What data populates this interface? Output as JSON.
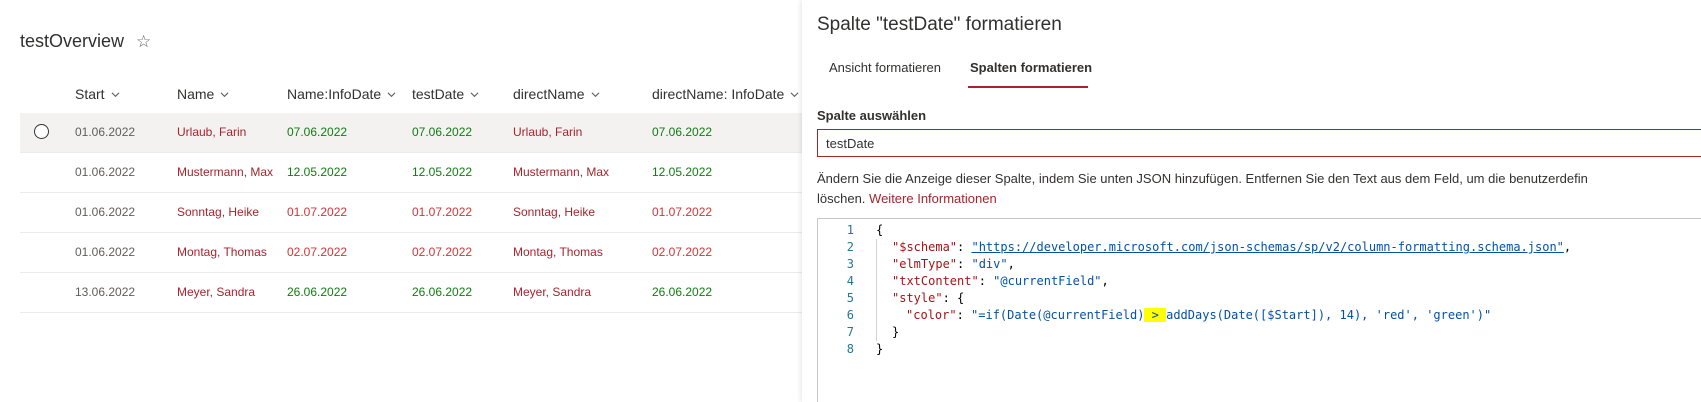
{
  "list": {
    "title": "testOverview",
    "columns": [
      "Start",
      "Name",
      "Name:InfoDate",
      "testDate",
      "directName",
      "directName: InfoDate"
    ],
    "rows": [
      {
        "start": "01.06.2022",
        "name": "Urlaub, Farin",
        "infoDate": "07.06.2022",
        "testDate": "07.06.2022",
        "directName": "Urlaub, Farin",
        "directInfoDate": "07.06.2022",
        "status": "green"
      },
      {
        "start": "01.06.2022",
        "name": "Mustermann, Max",
        "infoDate": "12.05.2022",
        "testDate": "12.05.2022",
        "directName": "Mustermann, Max",
        "directInfoDate": "12.05.2022",
        "status": "green"
      },
      {
        "start": "01.06.2022",
        "name": "Sonntag, Heike",
        "infoDate": "01.07.2022",
        "testDate": "01.07.2022",
        "directName": "Sonntag, Heike",
        "directInfoDate": "01.07.2022",
        "status": "red"
      },
      {
        "start": "01.06.2022",
        "name": "Montag, Thomas",
        "infoDate": "02.07.2022",
        "testDate": "02.07.2022",
        "directName": "Montag, Thomas",
        "directInfoDate": "02.07.2022",
        "status": "red"
      },
      {
        "start": "13.06.2022",
        "name": "Meyer, Sandra",
        "infoDate": "26.06.2022",
        "testDate": "26.06.2022",
        "directName": "Meyer, Sandra",
        "directInfoDate": "26.06.2022",
        "status": "green"
      }
    ]
  },
  "panel": {
    "title": "Spalte \"testDate\" formatieren",
    "tabs": [
      "Ansicht formatieren",
      "Spalten formatieren"
    ],
    "select_label": "Spalte auswählen",
    "select_value": "testDate",
    "description_line1": "Ändern Sie die Anzeige dieser Spalte, indem Sie unten JSON hinzufügen. Entfernen Sie den Text aus dem Feld, um die benutzerdefin",
    "description_line2": "löschen.",
    "description_link": "Weitere Informationen",
    "line_numbers": [
      "1",
      "2",
      "3",
      "4",
      "5",
      "6",
      "7",
      "8"
    ],
    "code": {
      "l1": "{",
      "l2_key": "\"$schema\"",
      "l2_val": "\"https://developer.microsoft.com/json-schemas/sp/v2/column-formatting.schema.json\"",
      "l3_key": "\"elmType\"",
      "l3_val": "\"div\"",
      "l4_key": "\"txtContent\"",
      "l4_val": "\"@currentField\"",
      "l5_key": "\"style\"",
      "l5_brace": "{",
      "l6_key": "\"color\"",
      "l6_val_a": "\"=if(Date(@currentField)",
      "l6_val_hl": " > ",
      "l6_val_b": "addDays(Date([$Start]), 14), 'red', 'green')\"",
      "l7": "}",
      "l8": "}"
    }
  },
  "colors": {
    "accent": "#a4262c",
    "green": "#107c10",
    "red": "#d13438",
    "highlight": "#ffff00"
  },
  "icons": {
    "favorite": "star-outline-icon",
    "sort": "chevron-down-icon",
    "select": "radio-circle-icon"
  }
}
